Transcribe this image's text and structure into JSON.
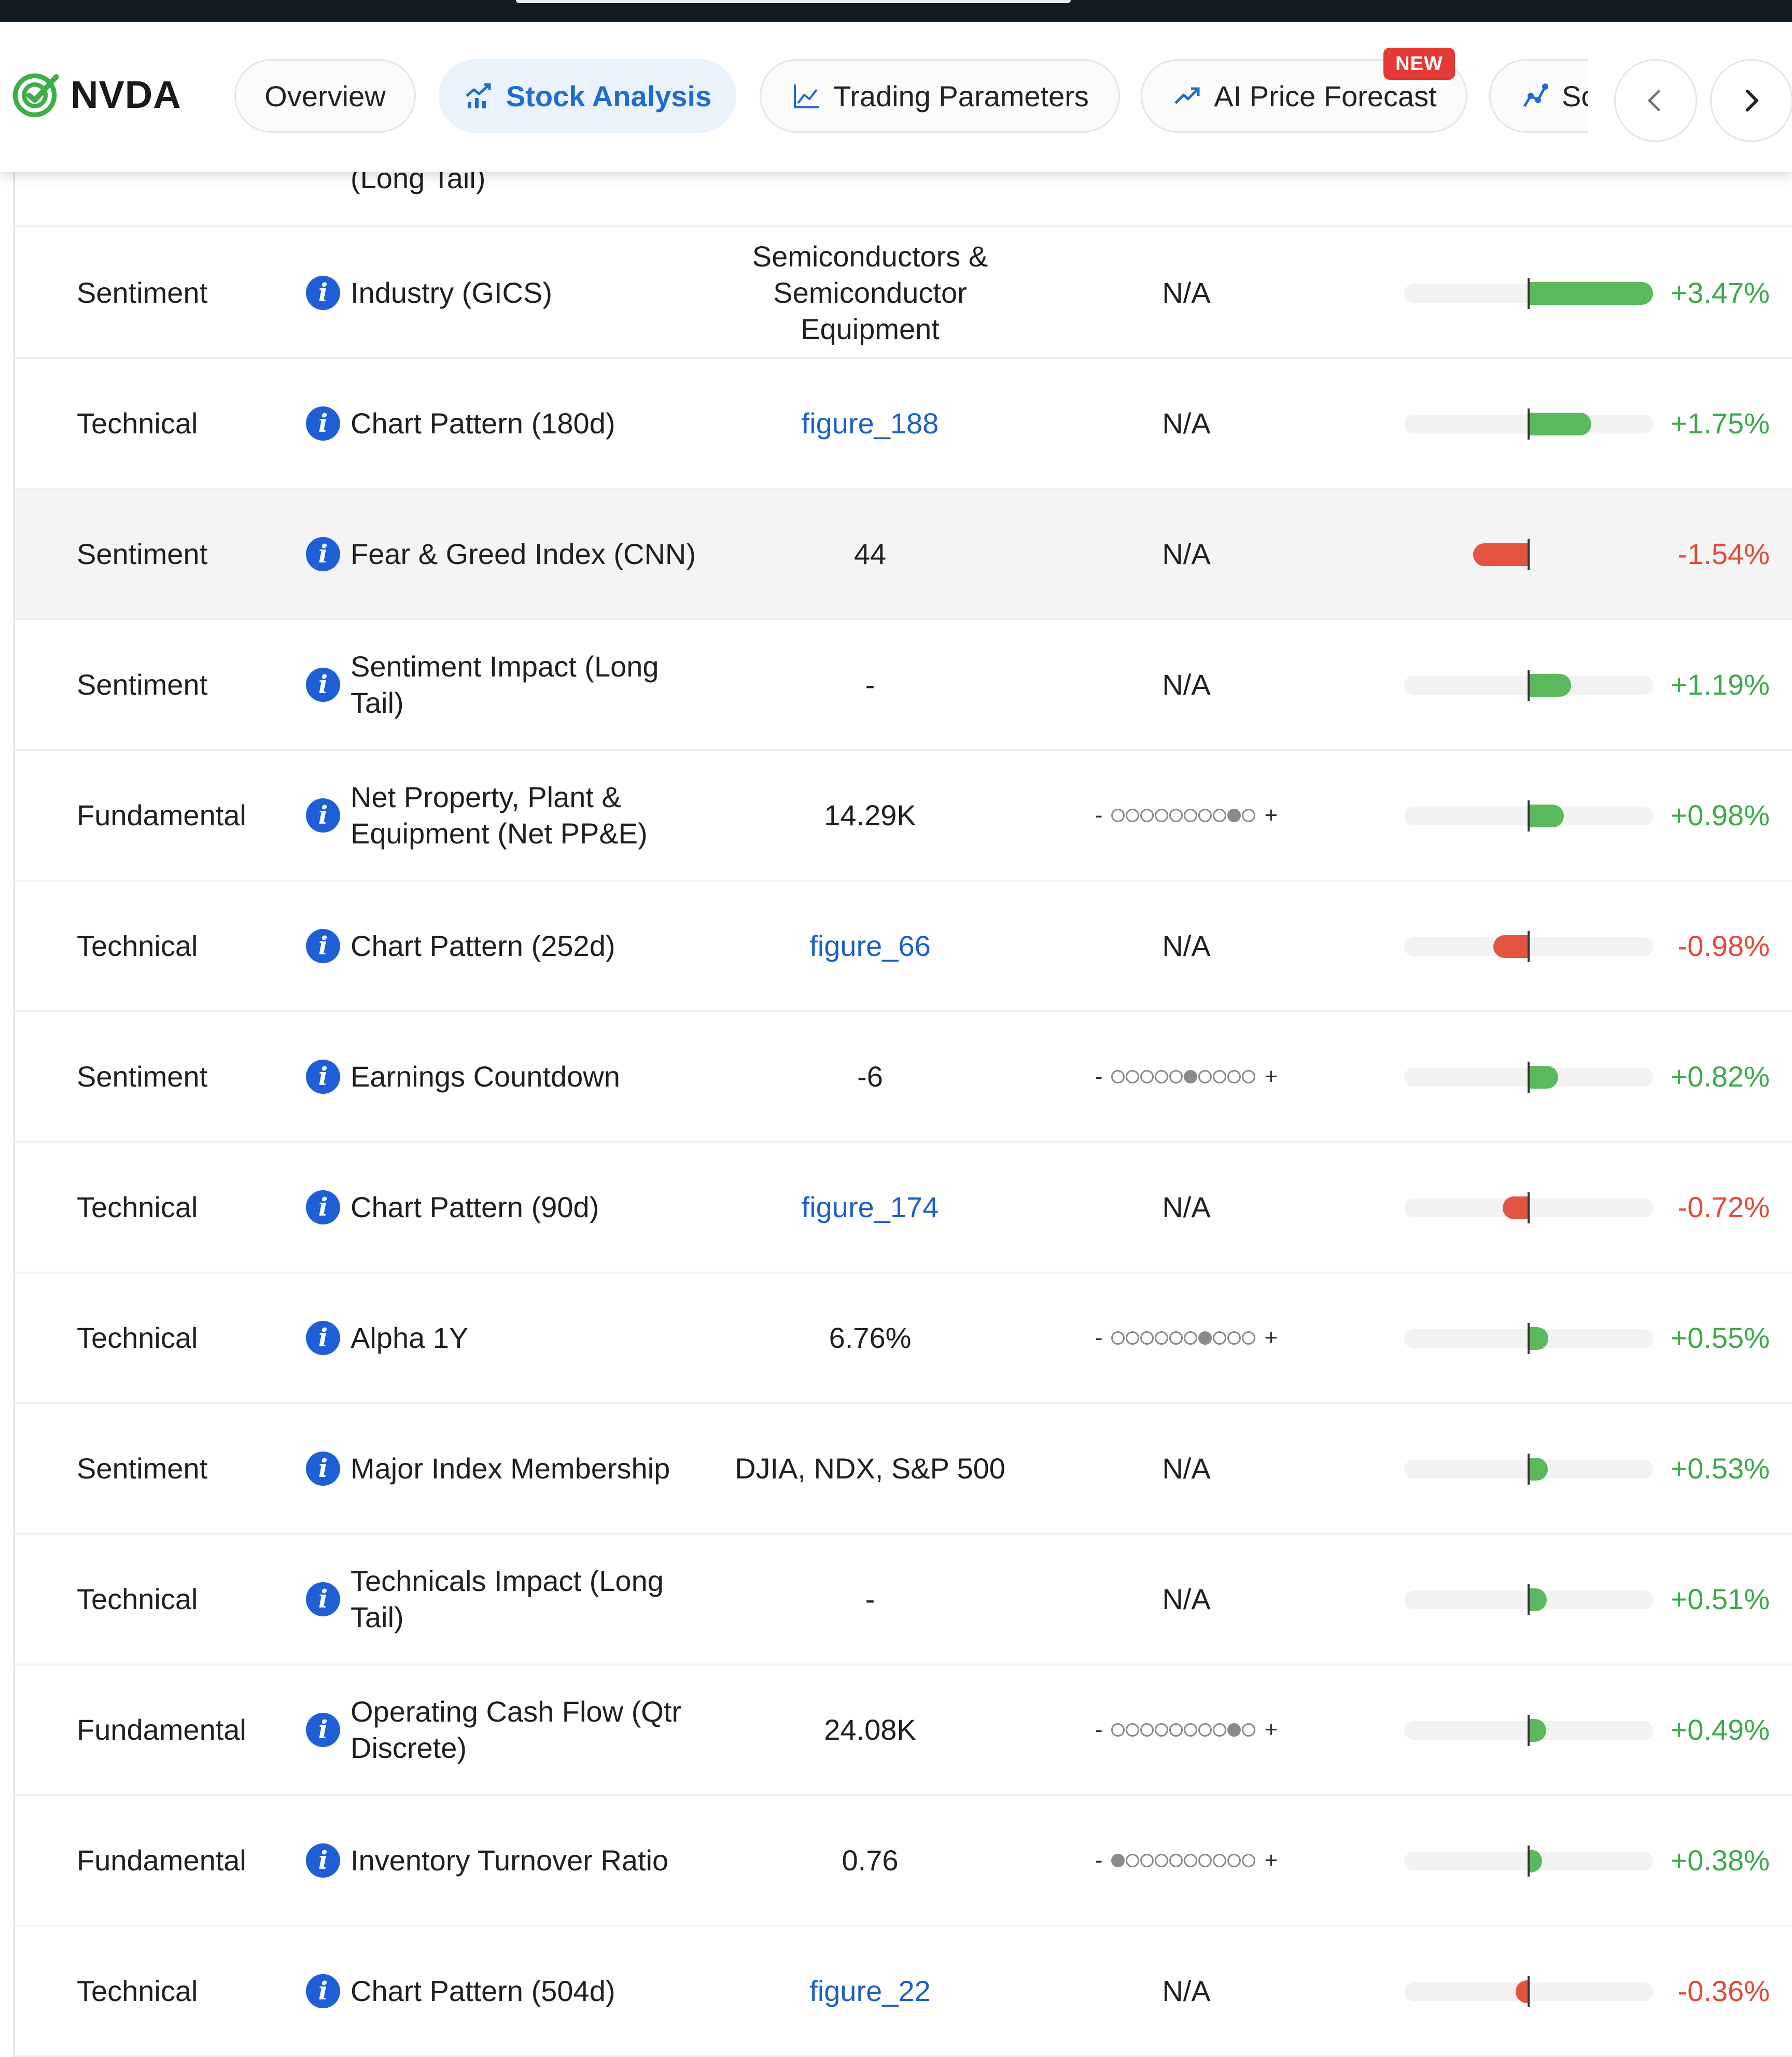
{
  "header": {
    "ticker": "NVDA",
    "tabs": [
      {
        "id": "overview",
        "label": "Overview",
        "icon": "none"
      },
      {
        "id": "stock",
        "label": "Stock Analysis",
        "icon": "chart-growth-icon",
        "active": true
      },
      {
        "id": "trading",
        "label": "Trading Parameters",
        "icon": "line-chart-icon"
      },
      {
        "id": "ai",
        "label": "AI Price Forecast",
        "icon": "trend-up-icon",
        "badge": "NEW"
      },
      {
        "id": "more",
        "label": "Sc",
        "icon": "scatter-line-icon"
      }
    ],
    "colors": {
      "accent": "#1e6bd1",
      "active_bg": "#eaf3fc",
      "badge": "#e53935",
      "logo_green": "#3fae49"
    }
  },
  "partial_row": {
    "name": "(Long Tail)"
  },
  "rows": [
    {
      "category": "Sentiment",
      "name": "Industry (GICS)",
      "value": "Semiconductors & Semiconductor Equipment",
      "range": "N/A",
      "impact": "+3.47%",
      "impact_value": 3.47
    },
    {
      "category": "Technical",
      "name": "Chart Pattern (180d)",
      "value": "figure_188",
      "range": "N/A",
      "impact": "+1.75%",
      "impact_value": 1.75
    },
    {
      "category": "Sentiment",
      "name": "Fear & Greed Index (CNN)",
      "value": "44",
      "range": "N/A",
      "impact": "-1.54%",
      "impact_value": -1.54
    },
    {
      "category": "Sentiment",
      "name": "Sentiment Impact (Long Tail)",
      "value": "-",
      "range": "N/A",
      "impact": "+1.19%",
      "impact_value": 1.19
    },
    {
      "category": "Fundamental",
      "name": "Net Property, Plant & Equipment (Net PP&E)",
      "value": "14.29K",
      "range_decile": 9,
      "impact": "+0.98%",
      "impact_value": 0.98
    },
    {
      "category": "Technical",
      "name": "Chart Pattern (252d)",
      "value": "figure_66",
      "range": "N/A",
      "impact": "-0.98%",
      "impact_value": -0.98
    },
    {
      "category": "Sentiment",
      "name": "Earnings Countdown",
      "value": "-6",
      "range_decile": 6,
      "impact": "+0.82%",
      "impact_value": 0.82
    },
    {
      "category": "Technical",
      "name": "Chart Pattern (90d)",
      "value": "figure_174",
      "range": "N/A",
      "impact": "-0.72%",
      "impact_value": -0.72
    },
    {
      "category": "Technical",
      "name": "Alpha 1Y",
      "value": "6.76%",
      "range_decile": 7,
      "impact": "+0.55%",
      "impact_value": 0.55
    },
    {
      "category": "Sentiment",
      "name": "Major Index Membership",
      "value": "DJIA, NDX, S&P 500",
      "range": "N/A",
      "impact": "+0.53%",
      "impact_value": 0.53
    },
    {
      "category": "Technical",
      "name": "Technicals Impact (Long Tail)",
      "value": "-",
      "range": "N/A",
      "impact": "+0.51%",
      "impact_value": 0.51
    },
    {
      "category": "Fundamental",
      "name": "Operating Cash Flow (Qtr Discrete)",
      "value": "24.08K",
      "range_decile": 9,
      "impact": "+0.49%",
      "impact_value": 0.49
    },
    {
      "category": "Fundamental",
      "name": "Inventory Turnover Ratio",
      "value": "0.76",
      "range_decile": 1,
      "impact": "+0.38%",
      "impact_value": 0.38
    },
    {
      "category": "Technical",
      "name": "Chart Pattern (504d)",
      "value": "figure_22",
      "range": "N/A",
      "impact": "-0.36%",
      "impact_value": -0.36
    }
  ],
  "range_signs": {
    "minus": "-",
    "plus": "+"
  }
}
